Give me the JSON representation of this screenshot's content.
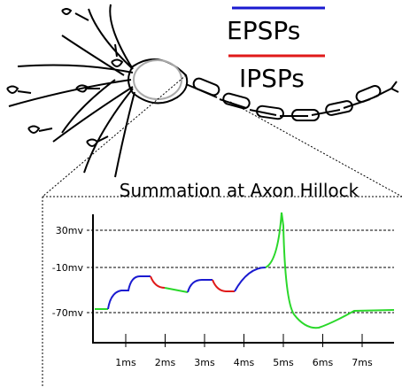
{
  "legend": {
    "epsp": "EPSPs",
    "ipsp": "IPSPs"
  },
  "panel": {
    "title": "Summation at Axon Hillock",
    "y_labels": [
      "30mv",
      "-10mv",
      "-70mv"
    ],
    "x_labels": [
      "1ms",
      "2ms",
      "3ms",
      "4ms",
      "5ms",
      "6ms",
      "7ms"
    ]
  }
}
